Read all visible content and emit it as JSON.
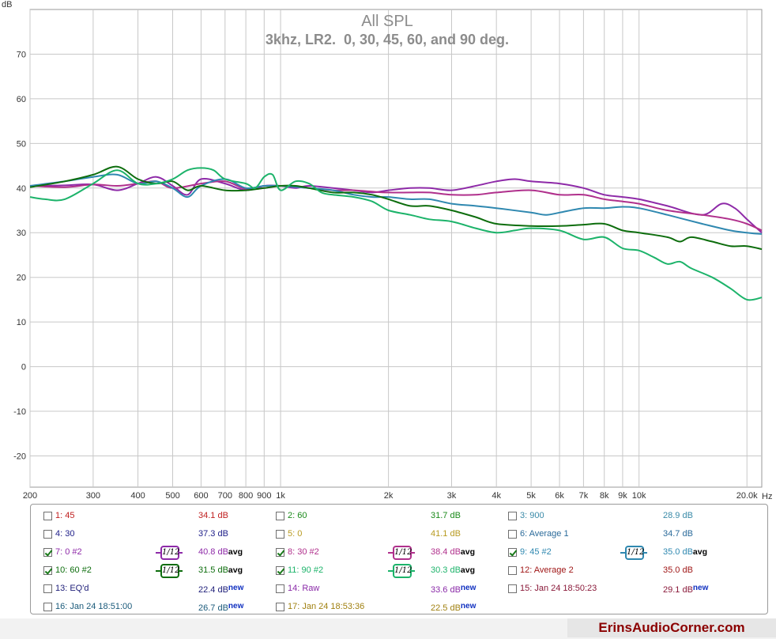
{
  "chart_data": {
    "type": "line",
    "title": "All SPL",
    "subtitle": "3khz, LR2.  0, 30, 45, 60, and 90 deg.",
    "ylabel": "dB",
    "xlabel_unit": "Hz",
    "x_scale": "log",
    "xlim": [
      200,
      22000
    ],
    "ylim": [
      -27,
      80
    ],
    "grid": true,
    "y_ticks": [
      70,
      60,
      50,
      40,
      30,
      20,
      10,
      0,
      -10,
      -20
    ],
    "x_ticks": [
      {
        "v": 200,
        "label": "200"
      },
      {
        "v": 300,
        "label": "300"
      },
      {
        "v": 400,
        "label": "400"
      },
      {
        "v": 500,
        "label": "500"
      },
      {
        "v": 600,
        "label": "600"
      },
      {
        "v": 700,
        "label": "700"
      },
      {
        "v": 800,
        "label": "800"
      },
      {
        "v": 900,
        "label": "900"
      },
      {
        "v": 1000,
        "label": "1k"
      },
      {
        "v": 2000,
        "label": "2k"
      },
      {
        "v": 3000,
        "label": "3k"
      },
      {
        "v": 4000,
        "label": "4k"
      },
      {
        "v": 5000,
        "label": "5k"
      },
      {
        "v": 6000,
        "label": "6k"
      },
      {
        "v": 7000,
        "label": "7k"
      },
      {
        "v": 8000,
        "label": "8k"
      },
      {
        "v": 9000,
        "label": "9k"
      },
      {
        "v": 10000,
        "label": "10k"
      },
      {
        "v": 20000,
        "label": "20.0k"
      }
    ],
    "series": [
      {
        "name": "7: 0 #2",
        "color": "#8e2aa8",
        "width": 2,
        "points": [
          [
            200,
            40.5
          ],
          [
            250,
            40.6
          ],
          [
            300,
            40.8
          ],
          [
            350,
            39.5
          ],
          [
            400,
            41
          ],
          [
            450,
            42.5
          ],
          [
            500,
            40.5
          ],
          [
            550,
            38.5
          ],
          [
            600,
            42
          ],
          [
            700,
            41
          ],
          [
            800,
            39.5
          ],
          [
            900,
            40.5
          ],
          [
            1000,
            40.5
          ],
          [
            1100,
            40
          ],
          [
            1200,
            40.5
          ],
          [
            1400,
            40
          ],
          [
            1600,
            39.5
          ],
          [
            1800,
            39
          ],
          [
            2000,
            39.5
          ],
          [
            2300,
            40
          ],
          [
            2600,
            40
          ],
          [
            3000,
            39.5
          ],
          [
            3500,
            40.5
          ],
          [
            4000,
            41.5
          ],
          [
            4500,
            42
          ],
          [
            5000,
            41.5
          ],
          [
            6000,
            41
          ],
          [
            7000,
            40
          ],
          [
            8000,
            38.5
          ],
          [
            9000,
            38
          ],
          [
            10000,
            37.5
          ],
          [
            12000,
            36
          ],
          [
            15000,
            34
          ],
          [
            17000,
            36.5
          ],
          [
            18500,
            35.5
          ],
          [
            20000,
            33
          ],
          [
            22000,
            30
          ]
        ]
      },
      {
        "name": "8: 30 #2",
        "color": "#b0308c",
        "width": 2,
        "points": [
          [
            200,
            40.5
          ],
          [
            250,
            40.2
          ],
          [
            300,
            40.8
          ],
          [
            350,
            40.5
          ],
          [
            400,
            41
          ],
          [
            450,
            41.5
          ],
          [
            500,
            40
          ],
          [
            600,
            41
          ],
          [
            700,
            41.5
          ],
          [
            800,
            39.8
          ],
          [
            900,
            40
          ],
          [
            1000,
            40.5
          ],
          [
            1200,
            40
          ],
          [
            1400,
            39.5
          ],
          [
            1600,
            39.5
          ],
          [
            1800,
            39.2
          ],
          [
            2000,
            39
          ],
          [
            2300,
            39
          ],
          [
            2600,
            39
          ],
          [
            3000,
            38.5
          ],
          [
            3500,
            38.5
          ],
          [
            4000,
            39
          ],
          [
            5000,
            39.5
          ],
          [
            6000,
            38.5
          ],
          [
            7000,
            38.5
          ],
          [
            8000,
            37.5
          ],
          [
            9000,
            37
          ],
          [
            10000,
            36.5
          ],
          [
            12000,
            35
          ],
          [
            15000,
            34
          ],
          [
            18000,
            33
          ],
          [
            20000,
            32
          ],
          [
            22000,
            30.5
          ]
        ]
      },
      {
        "name": "9: 45 #2",
        "color": "#2f88b0",
        "width": 2,
        "points": [
          [
            200,
            40.5
          ],
          [
            250,
            41.5
          ],
          [
            300,
            42.5
          ],
          [
            350,
            43
          ],
          [
            400,
            41
          ],
          [
            450,
            41.5
          ],
          [
            500,
            40
          ],
          [
            550,
            38
          ],
          [
            600,
            40.5
          ],
          [
            700,
            42
          ],
          [
            800,
            40
          ],
          [
            900,
            40.5
          ],
          [
            1000,
            40.5
          ],
          [
            1200,
            40
          ],
          [
            1400,
            39.5
          ],
          [
            1600,
            38.5
          ],
          [
            1800,
            38
          ],
          [
            2000,
            38
          ],
          [
            2300,
            37.5
          ],
          [
            2600,
            37.5
          ],
          [
            3000,
            36.5
          ],
          [
            3500,
            36
          ],
          [
            4000,
            35.5
          ],
          [
            5000,
            34.5
          ],
          [
            5500,
            34
          ],
          [
            6000,
            34.5
          ],
          [
            7000,
            35.5
          ],
          [
            8000,
            35.5
          ],
          [
            9000,
            35.8
          ],
          [
            10000,
            35.5
          ],
          [
            12000,
            34
          ],
          [
            15000,
            32
          ],
          [
            18000,
            30.5
          ],
          [
            20000,
            30
          ],
          [
            22000,
            29.7
          ]
        ]
      },
      {
        "name": "10: 60 #2",
        "color": "#0d6d0d",
        "width": 2,
        "points": [
          [
            200,
            40.2
          ],
          [
            250,
            41.5
          ],
          [
            300,
            43
          ],
          [
            350,
            44.8
          ],
          [
            400,
            42
          ],
          [
            450,
            41
          ],
          [
            500,
            41.5
          ],
          [
            550,
            39.5
          ],
          [
            600,
            40.5
          ],
          [
            700,
            39.5
          ],
          [
            800,
            39.5
          ],
          [
            900,
            40
          ],
          [
            1000,
            40.5
          ],
          [
            1100,
            40.5
          ],
          [
            1200,
            40
          ],
          [
            1400,
            39
          ],
          [
            1600,
            39
          ],
          [
            1800,
            38.5
          ],
          [
            2000,
            37.5
          ],
          [
            2300,
            36
          ],
          [
            2600,
            36
          ],
          [
            3000,
            35
          ],
          [
            3500,
            33.5
          ],
          [
            4000,
            32
          ],
          [
            5000,
            31.5
          ],
          [
            6000,
            31.5
          ],
          [
            7000,
            31.8
          ],
          [
            8000,
            32
          ],
          [
            9000,
            30.5
          ],
          [
            10000,
            30
          ],
          [
            12000,
            29
          ],
          [
            13000,
            28
          ],
          [
            14000,
            29
          ],
          [
            16000,
            28
          ],
          [
            18000,
            27
          ],
          [
            20000,
            27
          ],
          [
            22000,
            26.3
          ]
        ]
      },
      {
        "name": "11: 90 #2",
        "color": "#1cb36a",
        "width": 2,
        "points": [
          [
            200,
            38
          ],
          [
            220,
            37.5
          ],
          [
            250,
            37.5
          ],
          [
            300,
            41
          ],
          [
            350,
            44
          ],
          [
            400,
            41
          ],
          [
            450,
            41
          ],
          [
            500,
            42
          ],
          [
            550,
            44
          ],
          [
            600,
            44.5
          ],
          [
            650,
            44
          ],
          [
            700,
            42
          ],
          [
            800,
            41
          ],
          [
            850,
            40
          ],
          [
            900,
            42.5
          ],
          [
            950,
            43
          ],
          [
            1000,
            39.5
          ],
          [
            1100,
            41.5
          ],
          [
            1200,
            41
          ],
          [
            1300,
            39
          ],
          [
            1400,
            38.5
          ],
          [
            1600,
            38
          ],
          [
            1800,
            37
          ],
          [
            2000,
            35
          ],
          [
            2300,
            34
          ],
          [
            2600,
            33
          ],
          [
            3000,
            32.5
          ],
          [
            3500,
            31
          ],
          [
            4000,
            30
          ],
          [
            4500,
            30.5
          ],
          [
            5000,
            31
          ],
          [
            6000,
            30.5
          ],
          [
            7000,
            28.5
          ],
          [
            8000,
            29
          ],
          [
            9000,
            26.5
          ],
          [
            10000,
            26
          ],
          [
            11000,
            24.5
          ],
          [
            12000,
            23
          ],
          [
            13000,
            23.5
          ],
          [
            14000,
            22
          ],
          [
            16000,
            20
          ],
          [
            18000,
            17.5
          ],
          [
            20000,
            15
          ],
          [
            22000,
            15.5
          ]
        ]
      }
    ]
  },
  "legend": {
    "rows": [
      [
        {
          "checked": false,
          "name": "1: 45",
          "value": "34.1 dB",
          "tag": "",
          "color": "#c02020",
          "has_smooth": false
        },
        {
          "checked": false,
          "name": "2: 60",
          "value": "31.7 dB",
          "tag": "",
          "color": "#1a8a1a",
          "has_smooth": false
        },
        {
          "checked": false,
          "name": "3: 900",
          "value": "28.9 dB",
          "tag": "",
          "color": "#3a8aa8",
          "has_smooth": false
        }
      ],
      [
        {
          "checked": false,
          "name": "4: 30",
          "value": "37.3 dB",
          "tag": "",
          "color": "#20208a",
          "has_smooth": false
        },
        {
          "checked": false,
          "name": "5: 0",
          "value": "41.1 dB",
          "tag": "",
          "color": "#b89a20",
          "has_smooth": false
        },
        {
          "checked": false,
          "name": "6: Average 1",
          "value": "34.7 dB",
          "tag": "",
          "color": "#2a6a9a",
          "has_smooth": false
        }
      ],
      [
        {
          "checked": true,
          "name": "7: 0 #2",
          "value": "40.8 dB",
          "tag": "avg",
          "color": "#8e2aa8",
          "has_smooth": true,
          "smooth": "1/12"
        },
        {
          "checked": true,
          "name": "8: 30 #2",
          "value": "38.4 dB",
          "tag": "avg",
          "color": "#b0308c",
          "has_smooth": true,
          "smooth": "1/12"
        },
        {
          "checked": true,
          "name": "9: 45 #2",
          "value": "35.0 dB",
          "tag": "avg",
          "color": "#2f88b0",
          "has_smooth": true,
          "smooth": "1/12"
        }
      ],
      [
        {
          "checked": true,
          "name": "10: 60 #2",
          "value": "31.5 dB",
          "tag": "avg",
          "color": "#0d6d0d",
          "has_smooth": true,
          "smooth": "1/12"
        },
        {
          "checked": true,
          "name": "11: 90 #2",
          "value": "30.3 dB",
          "tag": "avg",
          "color": "#1cb36a",
          "has_smooth": true,
          "smooth": "1/12"
        },
        {
          "checked": false,
          "name": "12: Average 2",
          "value": "35.0 dB",
          "tag": "",
          "color": "#a01818",
          "has_smooth": false
        }
      ],
      [
        {
          "checked": false,
          "name": "13: EQ'd",
          "value": "22.4 dB",
          "tag": "new",
          "color": "#20207a",
          "has_smooth": false
        },
        {
          "checked": false,
          "name": "14: Raw",
          "value": "33.6 dB",
          "tag": "new",
          "color": "#8a2aa8",
          "has_smooth": false
        },
        {
          "checked": false,
          "name": "15: Jan 24 18:50:23",
          "value": "29.1 dB",
          "tag": "new",
          "color": "#8a1a3a",
          "has_smooth": false
        }
      ],
      [
        {
          "checked": false,
          "name": "16: Jan 24 18:51:00",
          "value": "26.7 dB",
          "tag": "new",
          "color": "#1a5a7a",
          "has_smooth": false
        },
        {
          "checked": false,
          "name": "17: Jan 24 18:53:36",
          "value": "22.5 dB",
          "tag": "new",
          "color": "#a08010",
          "has_smooth": false
        }
      ]
    ]
  },
  "watermark": "ErinsAudioCorner.com"
}
